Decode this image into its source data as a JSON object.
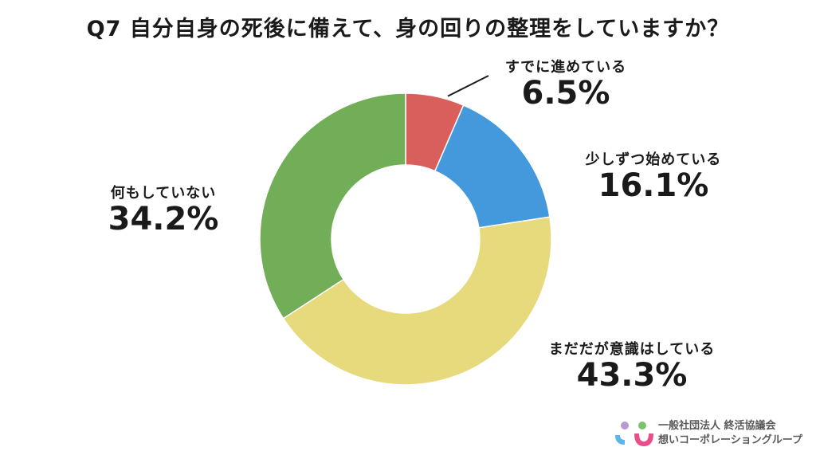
{
  "chart_data": {
    "type": "pie",
    "title": "Q7 自分自身の死後に備えて、身の回りの整理をしていますか？",
    "slices": [
      {
        "label": "すでに進めている",
        "value": 6.5,
        "display": "6.5%",
        "color": "#d95f5c"
      },
      {
        "label": "少しずつ始めている",
        "value": 16.1,
        "display": "16.1%",
        "color": "#4499dd"
      },
      {
        "label": "まだだが意識はしている",
        "value": 43.3,
        "display": "43.3%",
        "color": "#e6da7d"
      },
      {
        "label": "何もしていない",
        "value": 34.2,
        "display": "34.2%",
        "color": "#72ae58"
      }
    ],
    "legend": "none"
  },
  "logo": {
    "line1": "一般社団法人 終活協議会",
    "line2": "想いコーポレーショングループ",
    "dot_colors": [
      "#b79ad3",
      "#7ec36b",
      "#5ab6e6",
      "#e84f8a"
    ]
  }
}
